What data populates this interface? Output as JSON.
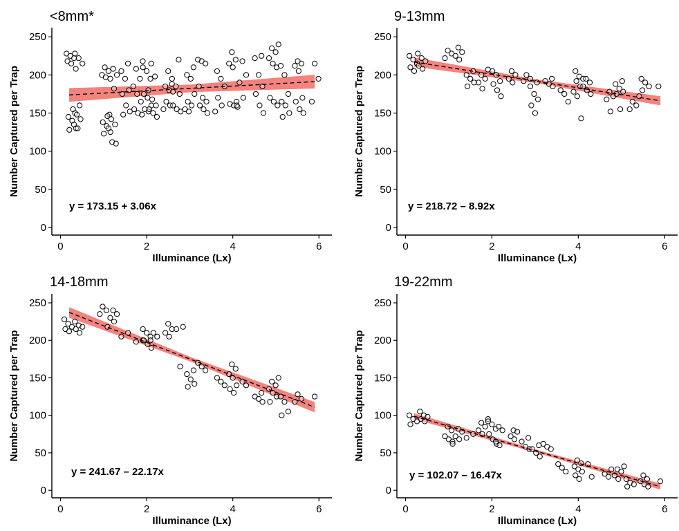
{
  "colors": {
    "band": "#f4837d",
    "points": "#000000",
    "fit": "#000000"
  },
  "chart_data": [
    {
      "type": "scatter",
      "title": "<8mm*",
      "xlabel": "Illuminance (Lx)",
      "ylabel": "Number Captured per Trap",
      "xlim": [
        -0.2,
        6.3
      ],
      "ylim": [
        -10,
        262
      ],
      "xticks": [
        0,
        2,
        4,
        6
      ],
      "yticks": [
        0,
        50,
        100,
        150,
        200,
        250
      ],
      "grid": false,
      "equation": "y = 173.15 + 3.06x",
      "fit": {
        "intercept": 173.15,
        "slope": 3.06,
        "ci_half": [
          9,
          5,
          9
        ],
        "x_range": [
          0.2,
          5.9
        ]
      },
      "clusters": [
        {
          "x": 0.25,
          "ys": [
            228,
            225,
            222,
            218,
            215,
            150,
            145,
            140,
            130,
            128
          ]
        },
        {
          "x": 0.4,
          "ys": [
            228,
            222,
            215,
            208,
            160,
            155,
            148,
            142,
            135,
            130
          ]
        },
        {
          "x": 1.05,
          "ys": [
            210,
            205,
            200,
            197,
            148,
            138,
            133,
            125,
            123
          ]
        },
        {
          "x": 1.2,
          "ys": [
            208,
            200,
            195,
            182,
            146,
            142,
            135,
            130,
            112,
            110
          ]
        },
        {
          "x": 1.5,
          "ys": [
            215,
            205,
            195,
            180,
            175,
            160,
            152,
            148
          ]
        },
        {
          "x": 1.8,
          "ys": [
            218,
            208,
            195,
            185,
            175,
            165,
            155,
            150
          ]
        },
        {
          "x": 2.0,
          "ys": [
            210,
            205,
            195,
            175,
            170,
            160,
            155,
            152,
            148
          ]
        },
        {
          "x": 2.15,
          "ys": [
            215,
            198,
            180,
            168,
            160,
            155,
            150,
            145
          ]
        },
        {
          "x": 2.5,
          "ys": [
            205,
            188,
            185,
            180,
            178,
            165,
            160,
            155
          ]
        },
        {
          "x": 2.7,
          "ys": [
            220,
            195,
            185,
            175,
            160,
            155,
            152
          ]
        },
        {
          "x": 3.0,
          "ys": [
            210,
            200,
            195,
            175,
            165,
            160,
            155,
            152
          ]
        },
        {
          "x": 3.3,
          "ys": [
            220,
            218,
            215,
            185,
            170,
            165,
            160,
            155,
            150
          ]
        },
        {
          "x": 3.7,
          "ys": [
            205,
            195,
            185,
            170,
            160,
            152
          ]
        },
        {
          "x": 4.0,
          "ys": [
            230,
            220,
            215,
            210,
            165,
            162,
            160,
            158
          ]
        },
        {
          "x": 4.2,
          "ys": [
            218,
            200,
            190,
            170,
            160
          ]
        },
        {
          "x": 4.6,
          "ys": [
            225,
            222,
            200,
            185,
            175,
            160,
            150
          ]
        },
        {
          "x": 4.95,
          "ys": [
            240,
            235,
            230,
            222,
            215,
            210,
            170,
            165,
            160
          ]
        },
        {
          "x": 5.2,
          "ys": [
            212,
            200,
            175,
            165,
            160,
            150,
            145
          ]
        },
        {
          "x": 5.55,
          "ys": [
            218,
            215,
            212,
            205,
            170,
            165,
            155,
            150
          ]
        },
        {
          "x": 5.9,
          "ys": [
            215,
            195,
            165
          ]
        }
      ]
    },
    {
      "type": "scatter",
      "title": "9-13mm",
      "xlabel": "Illuminance (Lx)",
      "ylabel": "Number Captured per Trap",
      "xlim": [
        -0.2,
        6.3
      ],
      "ylim": [
        -10,
        262
      ],
      "xticks": [
        0,
        2,
        4,
        6
      ],
      "yticks": [
        0,
        50,
        100,
        150,
        200,
        250
      ],
      "grid": false,
      "equation": "y = 218.72 – 8.92x",
      "fit": {
        "intercept": 218.72,
        "slope": -8.92,
        "ci_half": [
          6,
          2.5,
          6
        ],
        "x_range": [
          0.2,
          5.9
        ]
      },
      "clusters": [
        {
          "x": 0.2,
          "ys": [
            225,
            220,
            215,
            210,
            205
          ]
        },
        {
          "x": 0.35,
          "ys": [
            228,
            222,
            218,
            212,
            208
          ]
        },
        {
          "x": 1.0,
          "ys": [
            232,
            228,
            222
          ]
        },
        {
          "x": 1.2,
          "ys": [
            236,
            230,
            225,
            220
          ]
        },
        {
          "x": 1.5,
          "ys": [
            205,
            200,
            195,
            190,
            185
          ]
        },
        {
          "x": 1.8,
          "ys": [
            207,
            200,
            195,
            190,
            182
          ]
        },
        {
          "x": 2.1,
          "ys": [
            205,
            200,
            192,
            188,
            180,
            172
          ]
        },
        {
          "x": 2.5,
          "ys": [
            205,
            200,
            195,
            190
          ]
        },
        {
          "x": 2.8,
          "ys": [
            200,
            195,
            192
          ]
        },
        {
          "x": 3.0,
          "ys": [
            190,
            185,
            175,
            168,
            160,
            150
          ]
        },
        {
          "x": 3.3,
          "ys": [
            195,
            192,
            188,
            185
          ]
        },
        {
          "x": 3.7,
          "ys": [
            180,
            175,
            165
          ]
        },
        {
          "x": 4.0,
          "ys": [
            205,
            198,
            195,
            192,
            185,
            178,
            172,
            143
          ]
        },
        {
          "x": 4.2,
          "ys": [
            195,
            190,
            185,
            180,
            175
          ]
        },
        {
          "x": 4.7,
          "ys": [
            178,
            172,
            168,
            152
          ]
        },
        {
          "x": 4.95,
          "ys": [
            192,
            188,
            182,
            178,
            175,
            155
          ]
        },
        {
          "x": 5.3,
          "ys": [
            172,
            165,
            160,
            155
          ]
        },
        {
          "x": 5.55,
          "ys": [
            195,
            190,
            185,
            180
          ]
        },
        {
          "x": 5.9,
          "ys": [
            185
          ]
        }
      ]
    },
    {
      "type": "scatter",
      "title": "14-18mm",
      "xlabel": "Illuminance (Lx)",
      "ylabel": "Number Captured per Trap",
      "xlim": [
        -0.2,
        6.3
      ],
      "ylim": [
        -10,
        262
      ],
      "xticks": [
        0,
        2,
        4,
        6
      ],
      "yticks": [
        0,
        50,
        100,
        150,
        200,
        250
      ],
      "grid": false,
      "equation": "y = 241.67 – 22.17x",
      "fit": {
        "intercept": 241.67,
        "slope": -22.17,
        "ci_half": [
          7,
          3,
          7
        ],
        "x_range": [
          0.2,
          5.9
        ]
      },
      "clusters": [
        {
          "x": 0.2,
          "ys": [
            228,
            222,
            218,
            215,
            212
          ]
        },
        {
          "x": 0.4,
          "ys": [
            225,
            220,
            218,
            215,
            210
          ]
        },
        {
          "x": 1.0,
          "ys": [
            245,
            240,
            235
          ]
        },
        {
          "x": 1.2,
          "ys": [
            240,
            235,
            230,
            225,
            218
          ]
        },
        {
          "x": 1.5,
          "ys": [
            210,
            205
          ]
        },
        {
          "x": 1.8,
          "ys": [
            200,
            198
          ]
        },
        {
          "x": 2.0,
          "ys": [
            215,
            210,
            205,
            200,
            195,
            190
          ]
        },
        {
          "x": 2.2,
          "ys": [
            210,
            205,
            200
          ]
        },
        {
          "x": 2.5,
          "ys": [
            222,
            215,
            210,
            205
          ]
        },
        {
          "x": 2.8,
          "ys": [
            218,
            215,
            165
          ]
        },
        {
          "x": 3.0,
          "ys": [
            160,
            155,
            148,
            142,
            138
          ]
        },
        {
          "x": 3.3,
          "ys": [
            170,
            165,
            160
          ]
        },
        {
          "x": 3.7,
          "ys": [
            150,
            145,
            140
          ]
        },
        {
          "x": 4.0,
          "ys": [
            168,
            162,
            155,
            150,
            140,
            135,
            130
          ]
        },
        {
          "x": 4.2,
          "ys": [
            145,
            140
          ]
        },
        {
          "x": 4.6,
          "ys": [
            130,
            125,
            122,
            118
          ]
        },
        {
          "x": 4.95,
          "ys": [
            150,
            145,
            140,
            135,
            130,
            125,
            118
          ]
        },
        {
          "x": 5.2,
          "ys": [
            125,
            118,
            105,
            100
          ]
        },
        {
          "x": 5.55,
          "ys": [
            128,
            122,
            118
          ]
        },
        {
          "x": 5.9,
          "ys": [
            125
          ]
        }
      ]
    },
    {
      "type": "scatter",
      "title": "19-22mm",
      "xlabel": "Illuminance (Lx)",
      "ylabel": "Number Captured per Trap",
      "xlim": [
        -0.2,
        6.3
      ],
      "ylim": [
        -10,
        262
      ],
      "xticks": [
        0,
        2,
        4,
        6
      ],
      "yticks": [
        0,
        50,
        100,
        150,
        200,
        250
      ],
      "grid": false,
      "equation": "y = 102.07 – 16.47x",
      "fit": {
        "intercept": 102.07,
        "slope": -16.47,
        "ci_half": [
          4,
          2,
          4
        ],
        "x_range": [
          0.2,
          5.9
        ]
      },
      "clusters": [
        {
          "x": 0.2,
          "ys": [
            100,
            95,
            92,
            88
          ]
        },
        {
          "x": 0.4,
          "ys": [
            105,
            100,
            98,
            95,
            92
          ]
        },
        {
          "x": 1.0,
          "ys": [
            85,
            80,
            72,
            68,
            65
          ]
        },
        {
          "x": 1.2,
          "ys": [
            82,
            78,
            72,
            68,
            62
          ]
        },
        {
          "x": 1.5,
          "ys": [
            75,
            70
          ]
        },
        {
          "x": 1.8,
          "ys": [
            95,
            90,
            85,
            80,
            75
          ]
        },
        {
          "x": 2.0,
          "ys": [
            92,
            88,
            82,
            75,
            68,
            62
          ]
        },
        {
          "x": 2.2,
          "ys": [
            85,
            80,
            65,
            60
          ]
        },
        {
          "x": 2.5,
          "ys": [
            80,
            78,
            72,
            68
          ]
        },
        {
          "x": 2.8,
          "ys": [
            70,
            65,
            58,
            55
          ]
        },
        {
          "x": 3.0,
          "ys": [
            60,
            55,
            50,
            45
          ]
        },
        {
          "x": 3.3,
          "ys": [
            62,
            58,
            55
          ]
        },
        {
          "x": 3.6,
          "ys": [
            35,
            30,
            25
          ]
        },
        {
          "x": 4.0,
          "ys": [
            40,
            36,
            32,
            28,
            25,
            20,
            15
          ]
        },
        {
          "x": 4.2,
          "ys": [
            35,
            18
          ]
        },
        {
          "x": 4.7,
          "ys": [
            28,
            22,
            18
          ]
        },
        {
          "x": 4.95,
          "ys": [
            32,
            28,
            25,
            20,
            15
          ]
        },
        {
          "x": 5.2,
          "ys": [
            15,
            10,
            8,
            5
          ]
        },
        {
          "x": 5.55,
          "ys": [
            20,
            15,
            12,
            8,
            5
          ]
        },
        {
          "x": 5.9,
          "ys": [
            12
          ]
        }
      ]
    }
  ]
}
